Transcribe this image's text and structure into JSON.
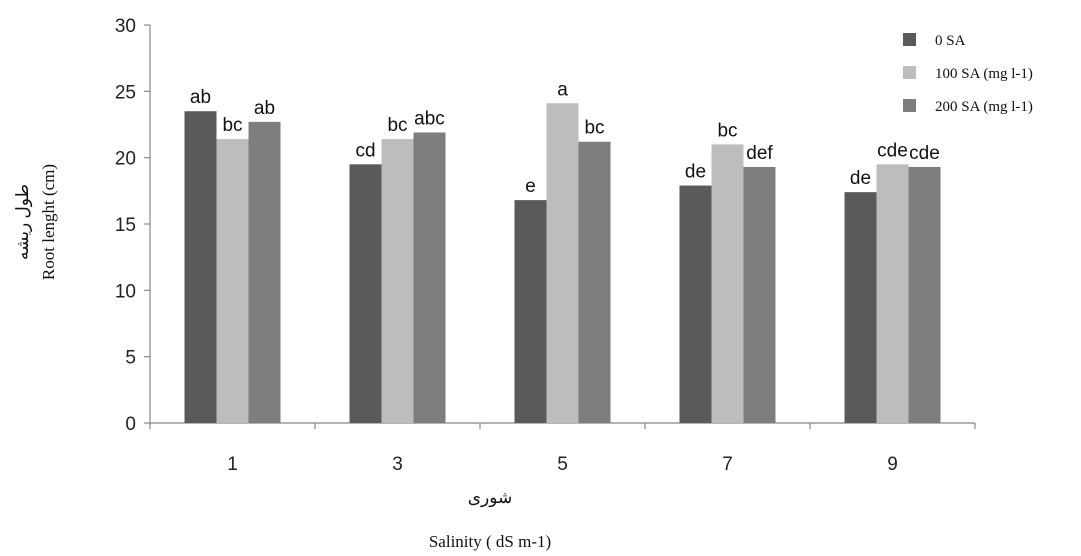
{
  "chart_data": {
    "type": "bar",
    "categories": [
      "1",
      "3",
      "5",
      "7",
      "9"
    ],
    "series": [
      {
        "name": "0 SA",
        "color": "#5a5a5a",
        "values": [
          23.5,
          19.5,
          16.8,
          17.9,
          17.4
        ],
        "labels": [
          "ab",
          "cd",
          "e",
          "de",
          "de"
        ]
      },
      {
        "name": "100 SA (mg l-1)",
        "color": "#bdbdbd",
        "values": [
          21.4,
          21.4,
          24.1,
          21.0,
          19.5
        ],
        "labels": [
          "bc",
          "bc",
          "a",
          "bc",
          "cde"
        ]
      },
      {
        "name": "200 SA (mg l-1)",
        "color": "#7e7e7e",
        "values": [
          22.7,
          21.9,
          21.2,
          19.3,
          19.3
        ],
        "labels": [
          "ab",
          "abc",
          "bc",
          "def",
          "cde"
        ]
      }
    ],
    "yticks": [
      "0",
      "5",
      "10",
      "15",
      "20",
      "25",
      "30"
    ],
    "ylim": [
      0,
      30
    ],
    "ylabel_fa": "طول ریشه",
    "ylabel_en": "Root lenght (cm)",
    "xlabel_fa": "شوری",
    "xlabel_en": "Salinity ( dS m-1)",
    "legend_position": "right",
    "grid": false
  }
}
